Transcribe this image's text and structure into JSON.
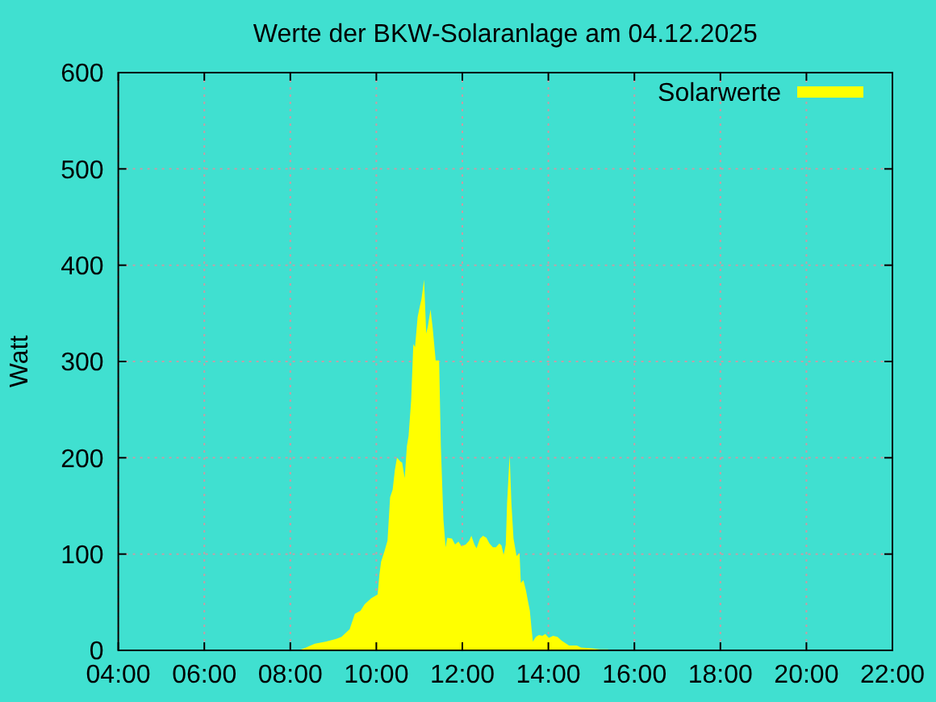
{
  "chart_data": {
    "type": "area",
    "title": "Werte der BKW-Solaranlage am 04.12.2025",
    "ylabel": "Watt",
    "xlim": [
      4,
      22
    ],
    "xticks": [
      {
        "value": 4,
        "label": "04:00"
      },
      {
        "value": 6,
        "label": "06:00"
      },
      {
        "value": 8,
        "label": "08:00"
      },
      {
        "value": 10,
        "label": "10:00"
      },
      {
        "value": 12,
        "label": "12:00"
      },
      {
        "value": 14,
        "label": "14:00"
      },
      {
        "value": 16,
        "label": "16:00"
      },
      {
        "value": 18,
        "label": "18:00"
      },
      {
        "value": 20,
        "label": "20:00"
      },
      {
        "value": 22,
        "label": "22:00"
      }
    ],
    "ylim": [
      0,
      600
    ],
    "yticks": [
      0,
      100,
      200,
      300,
      400,
      500,
      600
    ],
    "grid": true,
    "legend": "top right",
    "series": [
      {
        "name": "Solarwerte",
        "color": "#ffff00",
        "x": [
          8.19,
          8.32,
          8.57,
          8.82,
          9.07,
          9.19,
          9.38,
          9.44,
          9.5,
          9.63,
          9.73,
          9.88,
          10.03,
          10.07,
          10.11,
          10.19,
          10.26,
          10.32,
          10.38,
          10.43,
          10.48,
          10.56,
          10.6,
          10.66,
          10.71,
          10.75,
          10.81,
          10.86,
          10.9,
          10.96,
          11.01,
          11.05,
          11.11,
          11.16,
          11.2,
          11.26,
          11.31,
          11.38,
          11.46,
          11.5,
          11.56,
          11.61,
          11.65,
          11.76,
          11.83,
          11.91,
          11.98,
          12.08,
          12.16,
          12.21,
          12.28,
          12.33,
          12.41,
          12.48,
          12.56,
          12.63,
          12.71,
          12.78,
          12.86,
          12.91,
          12.96,
          13.01,
          13.04,
          13.1,
          13.14,
          13.19,
          13.26,
          13.33,
          13.36,
          13.42,
          13.48,
          13.53,
          13.57,
          13.61,
          13.64,
          13.71,
          13.78,
          13.86,
          13.93,
          14.01,
          14.11,
          14.21,
          14.31,
          14.38,
          14.48,
          14.66,
          14.76,
          15.01,
          15.2,
          15.38,
          15.47
        ],
        "values": [
          0,
          2,
          7,
          9,
          12,
          14,
          22,
          30,
          38,
          41,
          48,
          54,
          58,
          78,
          92,
          103,
          114,
          159,
          167,
          187,
          200,
          196,
          195,
          179,
          212,
          223,
          260,
          318,
          315,
          346,
          357,
          365,
          385,
          329,
          337,
          354,
          335,
          301,
          301,
          212,
          136,
          107,
          117,
          116,
          110,
          113,
          108,
          110,
          114,
          119,
          110,
          106,
          116,
          119,
          117,
          111,
          107,
          107,
          111,
          109,
          99,
          110,
          153,
          203,
          153,
          116,
          98,
          101,
          70,
          73,
          62,
          50,
          41,
          22,
          9,
          14,
          16,
          15,
          17,
          13,
          15,
          14,
          10,
          8,
          5,
          5,
          3,
          2,
          1,
          1,
          0
        ]
      }
    ]
  }
}
